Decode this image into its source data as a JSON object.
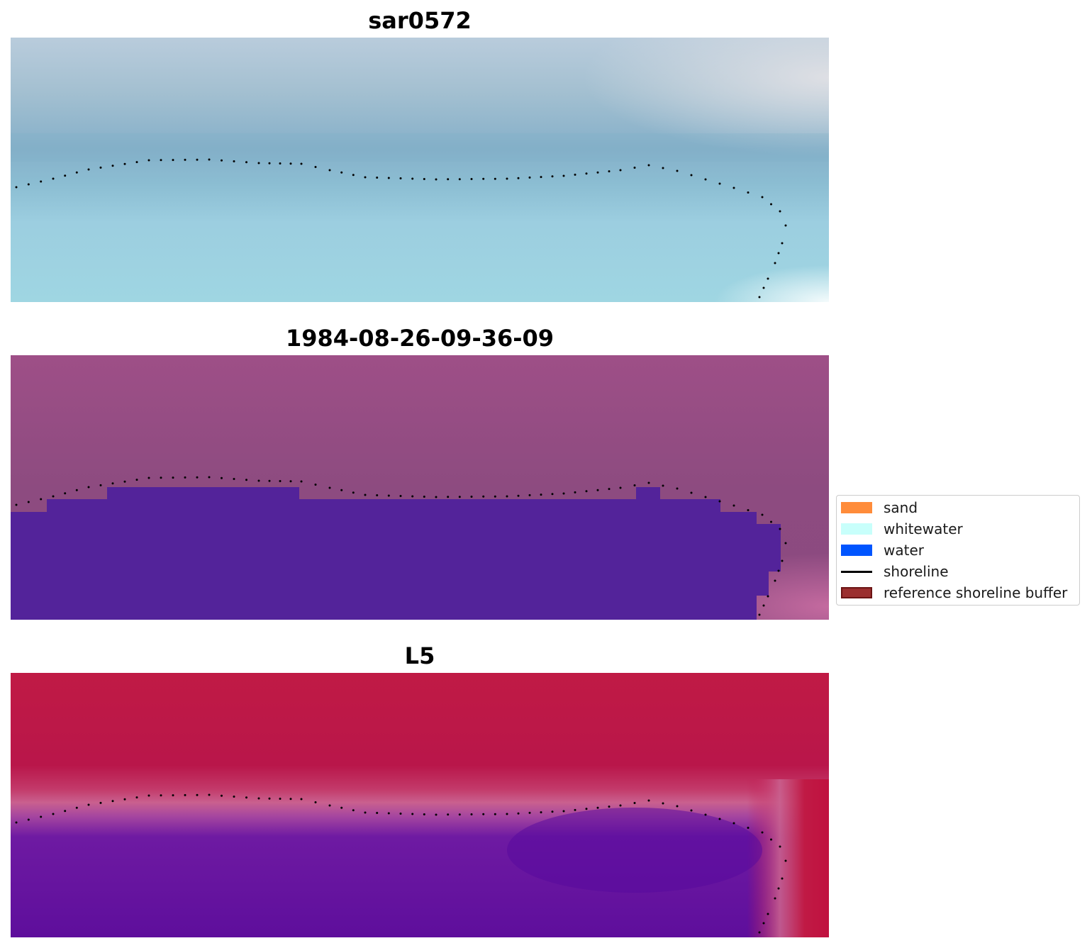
{
  "panels": [
    {
      "title": "sar0572"
    },
    {
      "title": "1984-08-26-09-36-09"
    },
    {
      "title": "L5"
    }
  ],
  "legend": {
    "entries": [
      {
        "label": "sand",
        "kind": "patch",
        "color": "#ff8c3a"
      },
      {
        "label": "whitewater",
        "kind": "patch",
        "color": "#c8fffb"
      },
      {
        "label": "water",
        "kind": "patch",
        "color": "#0055ff"
      },
      {
        "label": "shoreline",
        "kind": "line",
        "color": "#000000"
      },
      {
        "label": "reference shoreline buffer",
        "kind": "patch",
        "color": "#9b2f2f",
        "edge": "#6b1414"
      }
    ]
  },
  "colors": {
    "rgb_sky": "#b9ccdc",
    "rgb_steel": "#8fb7ca",
    "rgb_teal_band": "#79adc6",
    "rgb_light_water": "#9dd3e0",
    "rgb_white_corner": "#e6f4f6",
    "class_water_overlay": "#53239a",
    "class_mauve": "#8f4c82",
    "class_pink_corner": "#c16a9e",
    "index_red": "#c01a45",
    "index_pink_band": "#c9608e",
    "index_violet": "#5b0aa0",
    "shoreline": "#000000"
  }
}
